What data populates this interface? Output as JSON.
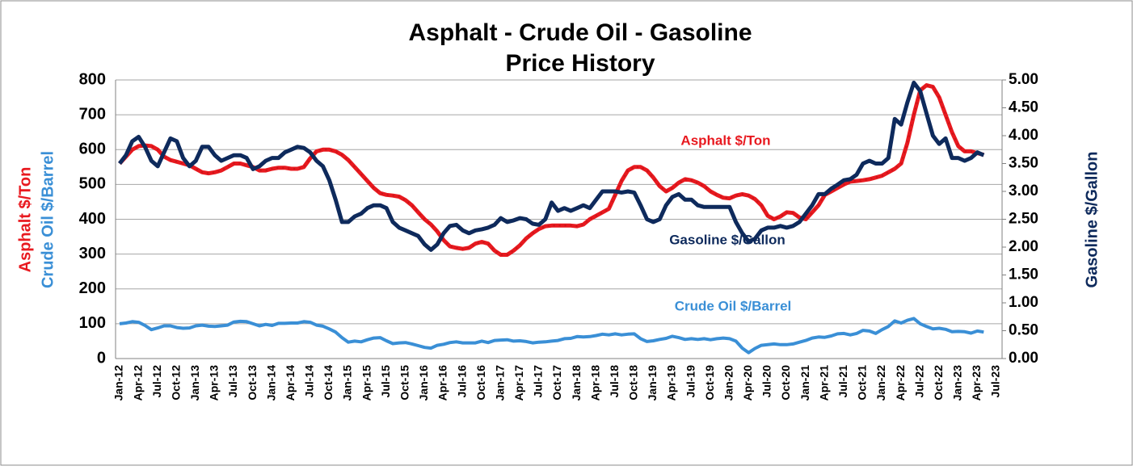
{
  "chart_data": {
    "type": "line",
    "title": [
      "Asphalt - Crude Oil - Gasoline",
      "Price History"
    ],
    "ylabel": [
      "Asphalt  $/Ton",
      "Crude Oil  $/Barrel"
    ],
    "y2label": "Gasoline $/Gallon",
    "categories": [
      "Jan-12",
      null,
      null,
      "Apr-12",
      null,
      null,
      "Jul-12",
      null,
      null,
      "Oct-12",
      null,
      null,
      "Jan-13",
      null,
      null,
      "Apr-13",
      null,
      null,
      "Jul-13",
      null,
      null,
      "Oct-13",
      null,
      null,
      "Jan-14",
      null,
      null,
      "Apr-14",
      null,
      null,
      "Jul-14",
      null,
      null,
      "Oct-14",
      null,
      null,
      "Jan-15",
      null,
      null,
      "Apr-15",
      null,
      null,
      "Jul-15",
      null,
      null,
      "Oct-15",
      null,
      null,
      "Jan-16",
      null,
      null,
      "Apr-16",
      null,
      null,
      "Jul-16",
      null,
      null,
      "Oct-16",
      null,
      null,
      "Jan-17",
      null,
      null,
      "Apr-17",
      null,
      null,
      "Jul-17",
      null,
      null,
      "Oct-17",
      null,
      null,
      "Jan-18",
      null,
      null,
      "Apr-18",
      null,
      null,
      "Jul-18",
      null,
      null,
      "Oct-18",
      null,
      null,
      "Jan-19",
      null,
      null,
      "Apr-19",
      null,
      null,
      "Jul-19",
      null,
      null,
      "Oct-19",
      null,
      null,
      "Jan-20",
      null,
      null,
      "Apr-20",
      null,
      null,
      "Jul-20",
      null,
      null,
      "Oct-20",
      null,
      null,
      "Jan-21",
      null,
      null,
      "Apr-21",
      null,
      null,
      "Jul-21",
      null,
      null,
      "Oct-21",
      null,
      null,
      "Jan-22",
      null,
      null,
      "Apr-22",
      null,
      null,
      "Jul-22",
      null,
      null,
      "Oct-22",
      null,
      null,
      "Jan-23",
      null,
      null,
      "Apr-23",
      null,
      null,
      "Jul-23"
    ],
    "series": [
      {
        "name": "Asphalt $/Ton",
        "color": "#e8191f",
        "axis": "y",
        "values": [
          560,
          580,
          600,
          610,
          612,
          610,
          600,
          580,
          570,
          565,
          560,
          555,
          545,
          535,
          532,
          535,
          540,
          550,
          560,
          560,
          555,
          550,
          540,
          540,
          545,
          548,
          548,
          545,
          545,
          550,
          575,
          595,
          600,
          600,
          595,
          585,
          570,
          550,
          530,
          510,
          490,
          475,
          470,
          468,
          465,
          455,
          440,
          420,
          400,
          385,
          365,
          340,
          322,
          318,
          315,
          318,
          330,
          335,
          330,
          310,
          298,
          298,
          310,
          325,
          345,
          360,
          372,
          380,
          382,
          382,
          382,
          382,
          380,
          385,
          400,
          410,
          420,
          430,
          470,
          510,
          540,
          550,
          550,
          540,
          520,
          495,
          480,
          490,
          505,
          515,
          512,
          505,
          495,
          480,
          470,
          462,
          460,
          468,
          472,
          468,
          458,
          440,
          410,
          400,
          408,
          420,
          418,
          405,
          400,
          420,
          440,
          470,
          480,
          490,
          500,
          508,
          510,
          512,
          515,
          520,
          525,
          535,
          545,
          560,
          620,
          700,
          770,
          785,
          780,
          750,
          700,
          650,
          610,
          595,
          595,
          590,
          585,
          null,
          null
        ]
      },
      {
        "name": "Gasoline $/Gallon",
        "color": "#0e2a5c",
        "axis": "y2",
        "values": [
          3.5,
          3.65,
          3.9,
          3.98,
          3.8,
          3.55,
          3.45,
          3.7,
          3.95,
          3.9,
          3.6,
          3.45,
          3.55,
          3.8,
          3.8,
          3.65,
          3.55,
          3.6,
          3.65,
          3.65,
          3.6,
          3.4,
          3.45,
          3.55,
          3.6,
          3.6,
          3.7,
          3.75,
          3.8,
          3.78,
          3.7,
          3.55,
          3.45,
          3.2,
          2.85,
          2.45,
          2.45,
          2.55,
          2.6,
          2.7,
          2.75,
          2.75,
          2.7,
          2.45,
          2.35,
          2.3,
          2.25,
          2.2,
          2.05,
          1.95,
          2.05,
          2.25,
          2.38,
          2.4,
          2.3,
          2.25,
          2.3,
          2.32,
          2.35,
          2.4,
          2.52,
          2.45,
          2.48,
          2.52,
          2.5,
          2.42,
          2.4,
          2.5,
          2.8,
          2.65,
          2.7,
          2.65,
          2.7,
          2.75,
          2.7,
          2.85,
          3.0,
          3.0,
          3.0,
          2.98,
          3.0,
          2.98,
          2.75,
          2.5,
          2.45,
          2.5,
          2.75,
          2.9,
          2.95,
          2.85,
          2.85,
          2.75,
          2.72,
          2.72,
          2.72,
          2.72,
          2.72,
          2.45,
          2.25,
          2.1,
          2.15,
          2.3,
          2.35,
          2.35,
          2.38,
          2.35,
          2.38,
          2.45,
          2.6,
          2.75,
          2.95,
          2.95,
          3.05,
          3.12,
          3.2,
          3.22,
          3.3,
          3.5,
          3.55,
          3.5,
          3.5,
          3.6,
          4.3,
          4.2,
          4.6,
          4.95,
          4.8,
          4.4,
          4.0,
          3.85,
          3.95,
          3.6,
          3.6,
          3.55,
          3.6,
          3.7,
          3.65,
          null,
          null
        ]
      },
      {
        "name": "Crude Oil $/Barrel",
        "color": "#3a8fd6",
        "axis": "y",
        "values": [
          100,
          102,
          106,
          104,
          95,
          83,
          88,
          94,
          94,
          89,
          87,
          88,
          94,
          96,
          93,
          92,
          94,
          96,
          105,
          107,
          106,
          100,
          94,
          98,
          95,
          101,
          101,
          102,
          102,
          106,
          104,
          96,
          93,
          85,
          76,
          60,
          47,
          50,
          48,
          54,
          59,
          60,
          51,
          43,
          45,
          46,
          42,
          37,
          32,
          30,
          38,
          41,
          46,
          48,
          45,
          45,
          45,
          50,
          46,
          52,
          53,
          54,
          50,
          51,
          49,
          45,
          47,
          48,
          50,
          52,
          57,
          58,
          63,
          62,
          63,
          66,
          70,
          68,
          71,
          68,
          70,
          71,
          57,
          49,
          51,
          55,
          58,
          64,
          60,
          55,
          57,
          55,
          57,
          54,
          57,
          59,
          57,
          50,
          30,
          17,
          29,
          38,
          40,
          42,
          40,
          40,
          42,
          47,
          52,
          59,
          62,
          61,
          65,
          71,
          72,
          68,
          72,
          81,
          79,
          72,
          83,
          92,
          108,
          102,
          110,
          115,
          100,
          92,
          85,
          87,
          84,
          77,
          78,
          77,
          73,
          79,
          76,
          null,
          null
        ]
      }
    ],
    "ylim": [
      0,
      800
    ],
    "yticks": [
      0,
      100,
      200,
      300,
      400,
      500,
      600,
      700,
      800
    ],
    "y2lim": [
      0,
      5
    ],
    "y2ticks": [
      {
        "value": 0,
        "label": "0.00"
      },
      {
        "value": 0.5,
        "label": "0.50"
      },
      {
        "value": 1,
        "label": "1.00"
      },
      {
        "value": 1.5,
        "label": "1.50"
      },
      {
        "value": 2,
        "label": "2.00"
      },
      {
        "value": 2.5,
        "label": "2.50"
      },
      {
        "value": 3,
        "label": "3.00"
      },
      {
        "value": 3.5,
        "label": "3.50"
      },
      {
        "value": 4,
        "label": "4.00"
      },
      {
        "value": 4.5,
        "label": "4.50"
      },
      {
        "value": 5,
        "label": "5.00"
      }
    ],
    "grid": true
  }
}
